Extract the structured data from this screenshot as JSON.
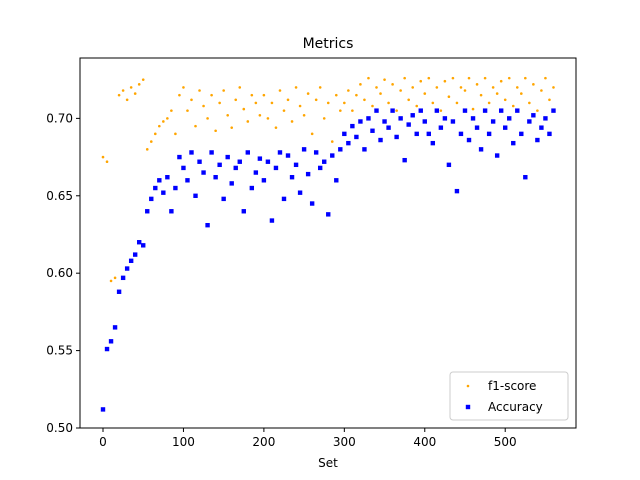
{
  "chart_data": {
    "type": "scatter",
    "title": "Metrics",
    "x_label": "Set",
    "x": [
      0,
      5,
      10,
      15,
      20,
      25,
      30,
      35,
      40,
      45,
      50,
      55,
      60,
      65,
      70,
      75,
      80,
      85,
      90,
      95,
      100,
      105,
      110,
      115,
      120,
      125,
      130,
      135,
      140,
      145,
      150,
      155,
      160,
      165,
      170,
      175,
      180,
      185,
      190,
      195,
      200,
      205,
      210,
      215,
      220,
      225,
      230,
      235,
      240,
      245,
      250,
      255,
      260,
      265,
      270,
      275,
      280,
      285,
      290,
      295,
      300,
      305,
      310,
      315,
      320,
      325,
      330,
      335,
      340,
      345,
      350,
      355,
      360,
      365,
      370,
      375,
      380,
      385,
      390,
      395,
      400,
      405,
      410,
      415,
      420,
      425,
      430,
      435,
      440,
      445,
      450,
      455,
      460,
      465,
      470,
      475,
      480,
      485,
      490,
      495,
      500,
      505,
      510,
      515,
      520,
      525,
      530,
      535,
      540,
      545,
      550,
      555,
      560
    ],
    "series": [
      {
        "name": "f1-score",
        "color": "#ffa500",
        "marker": "dot",
        "values": [
          0.675,
          0.672,
          0.595,
          0.597,
          0.715,
          0.718,
          0.712,
          0.72,
          0.716,
          0.722,
          0.725,
          0.68,
          0.685,
          0.69,
          0.695,
          0.698,
          0.7,
          0.705,
          0.69,
          0.715,
          0.72,
          0.705,
          0.712,
          0.695,
          0.718,
          0.708,
          0.7,
          0.715,
          0.692,
          0.71,
          0.718,
          0.702,
          0.694,
          0.712,
          0.72,
          0.706,
          0.698,
          0.715,
          0.71,
          0.702,
          0.715,
          0.7,
          0.71,
          0.694,
          0.718,
          0.705,
          0.712,
          0.698,
          0.72,
          0.708,
          0.702,
          0.716,
          0.69,
          0.712,
          0.72,
          0.7,
          0.71,
          0.685,
          0.715,
          0.705,
          0.71,
          0.718,
          0.705,
          0.715,
          0.722,
          0.712,
          0.726,
          0.708,
          0.72,
          0.716,
          0.725,
          0.71,
          0.722,
          0.705,
          0.718,
          0.726,
          0.712,
          0.72,
          0.708,
          0.724,
          0.716,
          0.726,
          0.71,
          0.72,
          0.705,
          0.724,
          0.714,
          0.726,
          0.71,
          0.72,
          0.718,
          0.726,
          0.706,
          0.722,
          0.715,
          0.726,
          0.71,
          0.72,
          0.716,
          0.724,
          0.712,
          0.726,
          0.708,
          0.72,
          0.716,
          0.726,
          0.71,
          0.722,
          0.705,
          0.718,
          0.726,
          0.712,
          0.72
        ]
      },
      {
        "name": "Accuracy",
        "color": "#0000ff",
        "marker": "square",
        "values": [
          0.512,
          0.551,
          0.556,
          0.565,
          0.588,
          0.597,
          0.603,
          0.608,
          0.612,
          0.62,
          0.618,
          0.64,
          0.648,
          0.655,
          0.66,
          0.652,
          0.662,
          0.64,
          0.655,
          0.675,
          0.668,
          0.66,
          0.678,
          0.65,
          0.672,
          0.665,
          0.631,
          0.678,
          0.662,
          0.67,
          0.648,
          0.675,
          0.658,
          0.668,
          0.672,
          0.64,
          0.678,
          0.655,
          0.665,
          0.674,
          0.66,
          0.672,
          0.634,
          0.668,
          0.678,
          0.648,
          0.676,
          0.662,
          0.67,
          0.652,
          0.68,
          0.664,
          0.645,
          0.678,
          0.668,
          0.672,
          0.638,
          0.676,
          0.66,
          0.68,
          0.69,
          0.684,
          0.695,
          0.688,
          0.698,
          0.68,
          0.7,
          0.692,
          0.705,
          0.686,
          0.698,
          0.694,
          0.705,
          0.688,
          0.7,
          0.673,
          0.696,
          0.702,
          0.69,
          0.705,
          0.698,
          0.69,
          0.684,
          0.705,
          0.694,
          0.7,
          0.67,
          0.698,
          0.653,
          0.69,
          0.705,
          0.686,
          0.7,
          0.694,
          0.68,
          0.705,
          0.69,
          0.698,
          0.676,
          0.705,
          0.694,
          0.7,
          0.684,
          0.705,
          0.69,
          0.662,
          0.698,
          0.702,
          0.686,
          0.694,
          0.7,
          0.69,
          0.705
        ]
      }
    ],
    "xlim": [
      -28.6,
      588
    ],
    "ylim": [
      0.5,
      0.739
    ],
    "xticks": [
      0,
      100,
      200,
      300,
      400,
      500
    ],
    "yticks": [
      {
        "value": 0.5,
        "label": "0.50"
      },
      0.55,
      {
        "value": 0.6,
        "label": "0.60"
      },
      0.65,
      {
        "value": 0.7,
        "label": "0.70"
      }
    ],
    "legend": "lower right"
  }
}
